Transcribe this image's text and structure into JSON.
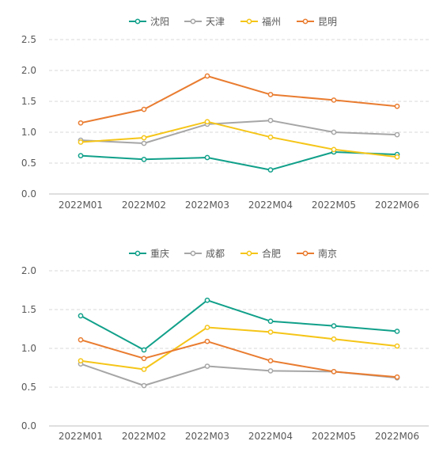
{
  "colors": {
    "teal": "#11a08a",
    "gray": "#a6a6a6",
    "yellow": "#f5c518",
    "orange": "#e97c30",
    "axis_text": "#595959",
    "grid": "#d9d9d9",
    "axis_line": "#bfbfbf"
  },
  "chart_data": [
    {
      "type": "line",
      "categories": [
        "2022M01",
        "2022M02",
        "2022M03",
        "2022M04",
        "2022M05",
        "2022M06"
      ],
      "ylim": [
        0,
        2.5
      ],
      "yticks": [
        "0.0",
        "0.5",
        "1.0",
        "1.5",
        "2.0",
        "2.5"
      ],
      "grid": true,
      "legend_position": "top",
      "series": [
        {
          "name": "沈阳",
          "color": "#11a08a",
          "values": [
            0.62,
            0.56,
            0.59,
            0.39,
            0.68,
            0.64
          ]
        },
        {
          "name": "天津",
          "color": "#a6a6a6",
          "values": [
            0.87,
            0.82,
            1.13,
            1.19,
            1.0,
            0.96
          ]
        },
        {
          "name": "福州",
          "color": "#f5c518",
          "values": [
            0.84,
            0.91,
            1.17,
            0.92,
            0.72,
            0.6
          ]
        },
        {
          "name": "昆明",
          "color": "#e97c30",
          "values": [
            1.15,
            1.37,
            1.91,
            1.61,
            1.52,
            1.42
          ]
        }
      ]
    },
    {
      "type": "line",
      "categories": [
        "2022M01",
        "2022M02",
        "2022M03",
        "2022M04",
        "2022M05",
        "2022M06"
      ],
      "ylim": [
        0,
        2.0
      ],
      "yticks": [
        "0.0",
        "0.5",
        "1.0",
        "1.5",
        "2.0"
      ],
      "grid": true,
      "legend_position": "top",
      "series": [
        {
          "name": "重庆",
          "color": "#11a08a",
          "values": [
            1.42,
            0.98,
            1.62,
            1.35,
            1.29,
            1.22
          ]
        },
        {
          "name": "成都",
          "color": "#a6a6a6",
          "values": [
            0.8,
            0.52,
            0.77,
            0.71,
            0.7,
            0.62
          ]
        },
        {
          "name": "合肥",
          "color": "#f5c518",
          "values": [
            0.84,
            0.73,
            1.27,
            1.21,
            1.12,
            1.03
          ]
        },
        {
          "name": "南京",
          "color": "#e97c30",
          "values": [
            1.11,
            0.87,
            1.09,
            0.84,
            0.7,
            0.63
          ]
        }
      ]
    }
  ]
}
